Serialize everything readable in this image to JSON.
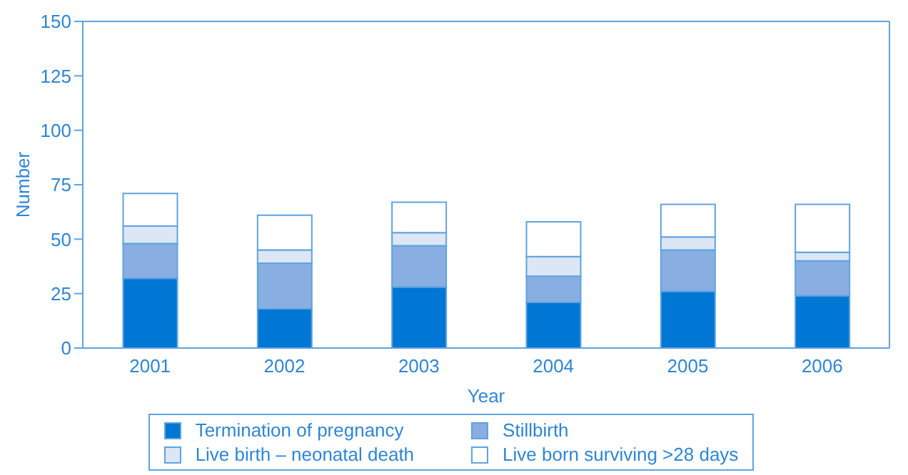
{
  "chart_data": {
    "type": "bar",
    "stacked": true,
    "xlabel": "Year",
    "ylabel": "Number",
    "categories": [
      "2001",
      "2002",
      "2003",
      "2004",
      "2005",
      "2006"
    ],
    "series": [
      {
        "name": "Termination of pregnancy",
        "color": "#0077d4",
        "values": [
          32,
          18,
          28,
          21,
          26,
          24
        ]
      },
      {
        "name": "Stillbirth",
        "color": "#88aee2",
        "values": [
          16,
          21,
          19,
          12,
          19,
          16
        ]
      },
      {
        "name": "Live birth – neonatal death",
        "color": "#dce6f4",
        "values": [
          8,
          6,
          6,
          9,
          6,
          4
        ]
      },
      {
        "name": "Live born surviving >28 days",
        "color": "#ffffff",
        "values": [
          15,
          16,
          14,
          16,
          15,
          22
        ]
      }
    ],
    "ylim": [
      0,
      150
    ],
    "yticks": [
      0,
      25,
      50,
      75,
      100,
      125,
      150
    ],
    "grid": false,
    "legend": "bottom"
  }
}
